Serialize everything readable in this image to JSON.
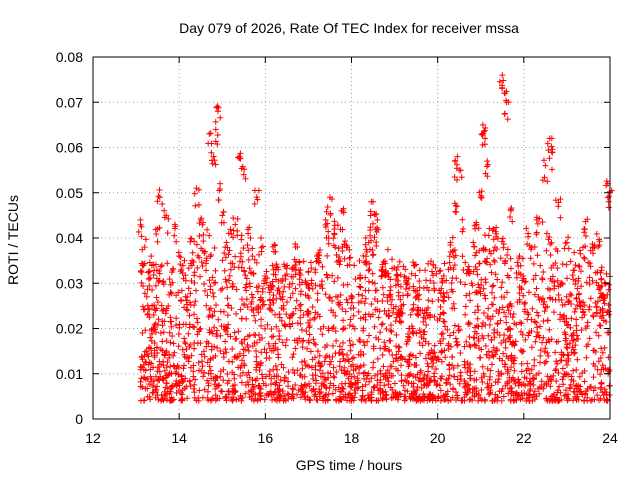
{
  "chart_data": {
    "type": "scatter",
    "title": "Day 079 of 2026, Rate Of TEC Index for receiver mssa",
    "xlabel": "GPS time / hours",
    "ylabel": "ROTI / TECUs",
    "xlim": [
      12,
      24
    ],
    "ylim": [
      0,
      0.08
    ],
    "x_ticks": [
      12,
      14,
      16,
      18,
      20,
      22,
      24
    ],
    "x_tick_labels": [
      "12",
      "14",
      "16",
      "18",
      "20",
      "22",
      "24"
    ],
    "y_ticks": [
      0,
      0.01,
      0.02,
      0.03,
      0.04,
      0.05,
      0.06,
      0.07,
      0.08
    ],
    "y_tick_labels": [
      "0",
      "0.01",
      "0.02",
      "0.03",
      "0.04",
      "0.05",
      "0.06",
      "0.07",
      "0.08"
    ],
    "grid": true,
    "marker": "+",
    "color": "#ff0000",
    "series": [
      {
        "name": "ROTI",
        "points": [
          [
            13.1,
            0.044
          ],
          [
            13.2,
            0.038
          ],
          [
            13.25,
            0.027
          ],
          [
            13.3,
            0.031
          ],
          [
            13.35,
            0.036
          ],
          [
            13.4,
            0.02
          ],
          [
            13.45,
            0.024
          ],
          [
            13.5,
            0.042
          ],
          [
            13.55,
            0.049
          ],
          [
            13.6,
            0.034
          ],
          [
            13.7,
            0.045
          ],
          [
            13.8,
            0.028
          ],
          [
            13.9,
            0.043
          ],
          [
            14.0,
            0.036
          ],
          [
            14.1,
            0.031
          ],
          [
            14.2,
            0.024
          ],
          [
            14.3,
            0.035
          ],
          [
            14.4,
            0.051
          ],
          [
            14.5,
            0.044
          ],
          [
            14.6,
            0.037
          ],
          [
            14.7,
            0.063
          ],
          [
            14.8,
            0.058
          ],
          [
            14.85,
            0.064
          ],
          [
            14.9,
            0.068
          ],
          [
            14.95,
            0.052
          ],
          [
            15.0,
            0.045
          ],
          [
            15.1,
            0.039
          ],
          [
            15.2,
            0.033
          ],
          [
            15.3,
            0.043
          ],
          [
            15.4,
            0.058
          ],
          [
            15.5,
            0.054
          ],
          [
            15.6,
            0.041
          ],
          [
            15.7,
            0.036
          ],
          [
            15.8,
            0.049
          ],
          [
            15.9,
            0.04
          ],
          [
            16.0,
            0.031
          ],
          [
            16.1,
            0.028
          ],
          [
            16.2,
            0.037
          ],
          [
            16.3,
            0.033
          ],
          [
            16.4,
            0.027
          ],
          [
            16.5,
            0.032
          ],
          [
            16.7,
            0.038
          ],
          [
            16.8,
            0.025
          ],
          [
            17.0,
            0.029
          ],
          [
            17.2,
            0.036
          ],
          [
            17.4,
            0.044
          ],
          [
            17.5,
            0.049
          ],
          [
            17.6,
            0.041
          ],
          [
            17.7,
            0.035
          ],
          [
            17.8,
            0.046
          ],
          [
            17.9,
            0.038
          ],
          [
            18.0,
            0.027
          ],
          [
            18.2,
            0.031
          ],
          [
            18.4,
            0.039
          ],
          [
            18.5,
            0.048
          ],
          [
            18.6,
            0.044
          ],
          [
            18.7,
            0.033
          ],
          [
            18.9,
            0.027
          ],
          [
            19.1,
            0.023
          ],
          [
            19.3,
            0.03
          ],
          [
            19.5,
            0.027
          ],
          [
            19.7,
            0.024
          ],
          [
            19.9,
            0.034
          ],
          [
            20.1,
            0.031
          ],
          [
            20.3,
            0.039
          ],
          [
            20.4,
            0.057
          ],
          [
            20.45,
            0.047
          ],
          [
            20.5,
            0.055
          ],
          [
            20.7,
            0.033
          ],
          [
            20.9,
            0.043
          ],
          [
            21.0,
            0.049
          ],
          [
            21.05,
            0.065
          ],
          [
            21.1,
            0.062
          ],
          [
            21.15,
            0.057
          ],
          [
            21.3,
            0.042
          ],
          [
            21.5,
            0.076
          ],
          [
            21.55,
            0.072
          ],
          [
            21.6,
            0.07
          ],
          [
            21.7,
            0.046
          ],
          [
            21.9,
            0.036
          ],
          [
            22.1,
            0.041
          ],
          [
            22.3,
            0.044
          ],
          [
            22.5,
            0.056
          ],
          [
            22.6,
            0.062
          ],
          [
            22.65,
            0.059
          ],
          [
            22.8,
            0.047
          ],
          [
            23.0,
            0.039
          ],
          [
            23.2,
            0.034
          ],
          [
            23.4,
            0.042
          ],
          [
            23.6,
            0.038
          ],
          [
            23.8,
            0.031
          ],
          [
            23.95,
            0.052
          ],
          [
            24.0,
            0.05
          ]
        ],
        "bulk_band": {
          "x_range": [
            13.1,
            24.0
          ],
          "y_range": [
            0.004,
            0.035
          ],
          "density_note": "dense cluster of points between 13.1 and 24 h, mostly 0.005 to 0.03"
        }
      }
    ]
  }
}
